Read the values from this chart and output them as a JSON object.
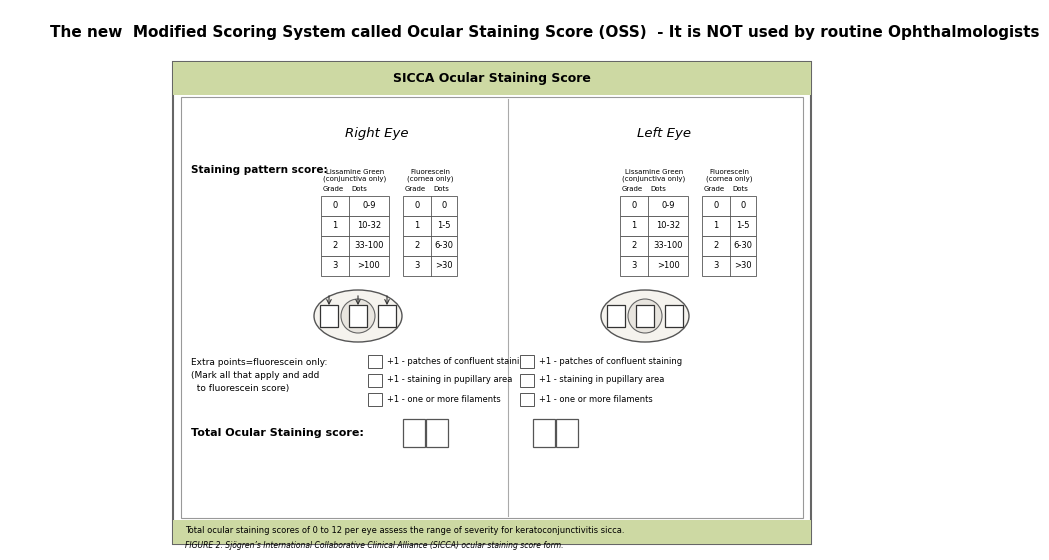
{
  "title": "The new  Modified Scoring System called Ocular Staining Score (OSS)  - It is NOT used by routine Ophthalmologists",
  "title_fontsize": 11,
  "bg_color": "#ffffff",
  "header_bg": "#cdd9a3",
  "footer_bg": "#cdd9a3",
  "panel_border_color": "#666666",
  "form_title": "SICCA Ocular Staining Score",
  "right_eye_label": "Right Eye",
  "left_eye_label": "Left Eye",
  "staining_label": "Staining pattern score:",
  "lg_label": "Lissamine Green\n(conjunctiva only)",
  "fl_label": "Fluorescein\n(cornea only)",
  "table_grades": [
    "0",
    "1",
    "2",
    "3"
  ],
  "lg_dots": [
    "0-9",
    "10-32",
    "33-100",
    ">100"
  ],
  "fl_dots": [
    "0",
    "1-5",
    "6-30",
    ">30"
  ],
  "extra_label_line1": "Extra points=fluorescein only:",
  "extra_label_line2": "(Mark all that apply and add",
  "extra_label_line3": "  to fluorescein score)",
  "extra_items": [
    "+1 - patches of confluent staining",
    "+1 - staining in pupillary area",
    "+1 - one or more filaments"
  ],
  "total_label": "Total Ocular Staining score:",
  "footer1": "Total ocular staining scores of 0 to 12 per eye assess the range of severity for keratoconjunctivitis sicca.",
  "footer2": "FIGURE 2. Sjögren’s International Collaborative Clinical Alliance (SICCA) ocular staining score form."
}
